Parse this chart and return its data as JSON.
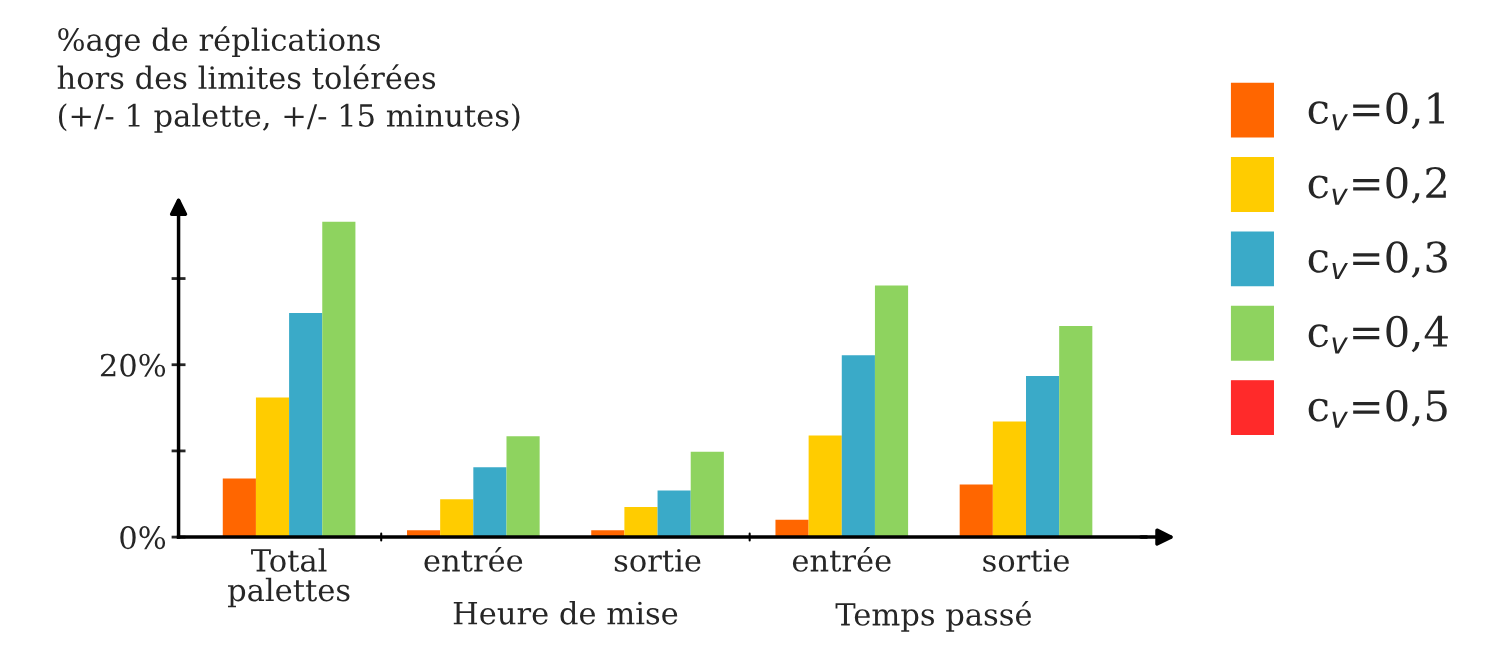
{
  "chart_data": {
    "type": "bar",
    "ylabel": "%age de réplications\nhors des limites tolérées\n(+/- 1 palette, +/- 15 minutes)",
    "categories": [
      "Total\npalettes",
      "entrée",
      "sortie",
      "entrée",
      "sortie"
    ],
    "annotations": [
      "Heure de mise",
      "Temps passé"
    ],
    "series": [
      {
        "name": "c$_{v}$=0,1",
        "color": "#ff6600",
        "values": [
          6.8,
          0.8,
          0.8,
          2.0,
          6.1
        ]
      },
      {
        "name": "c$_{v}$=0,2",
        "color": "#ffcc00",
        "values": [
          16.2,
          4.4,
          3.5,
          11.8,
          13.4
        ]
      },
      {
        "name": "c$_{v}$=0,3",
        "color": "#3aaac8",
        "values": [
          26.0,
          8.1,
          5.4,
          21.1,
          18.7
        ]
      },
      {
        "name": "c$_{v}$=0,4",
        "color": "#8ed35f",
        "values": [
          36.6,
          11.7,
          9.9,
          29.2,
          24.5
        ]
      },
      {
        "name": "c$_{v}$=0,5",
        "color": "#ff2a2a",
        "values": [
          null,
          null,
          null,
          null,
          null
        ]
      }
    ],
    "ylim": [
      0,
      38
    ],
    "yticks": [
      {
        "value": 0,
        "label": "0%"
      },
      {
        "value": 10,
        "label": null
      },
      {
        "value": 20,
        "label": "20%"
      },
      {
        "value": 30,
        "label": null
      }
    ],
    "legend": "right",
    "grid": false
  }
}
